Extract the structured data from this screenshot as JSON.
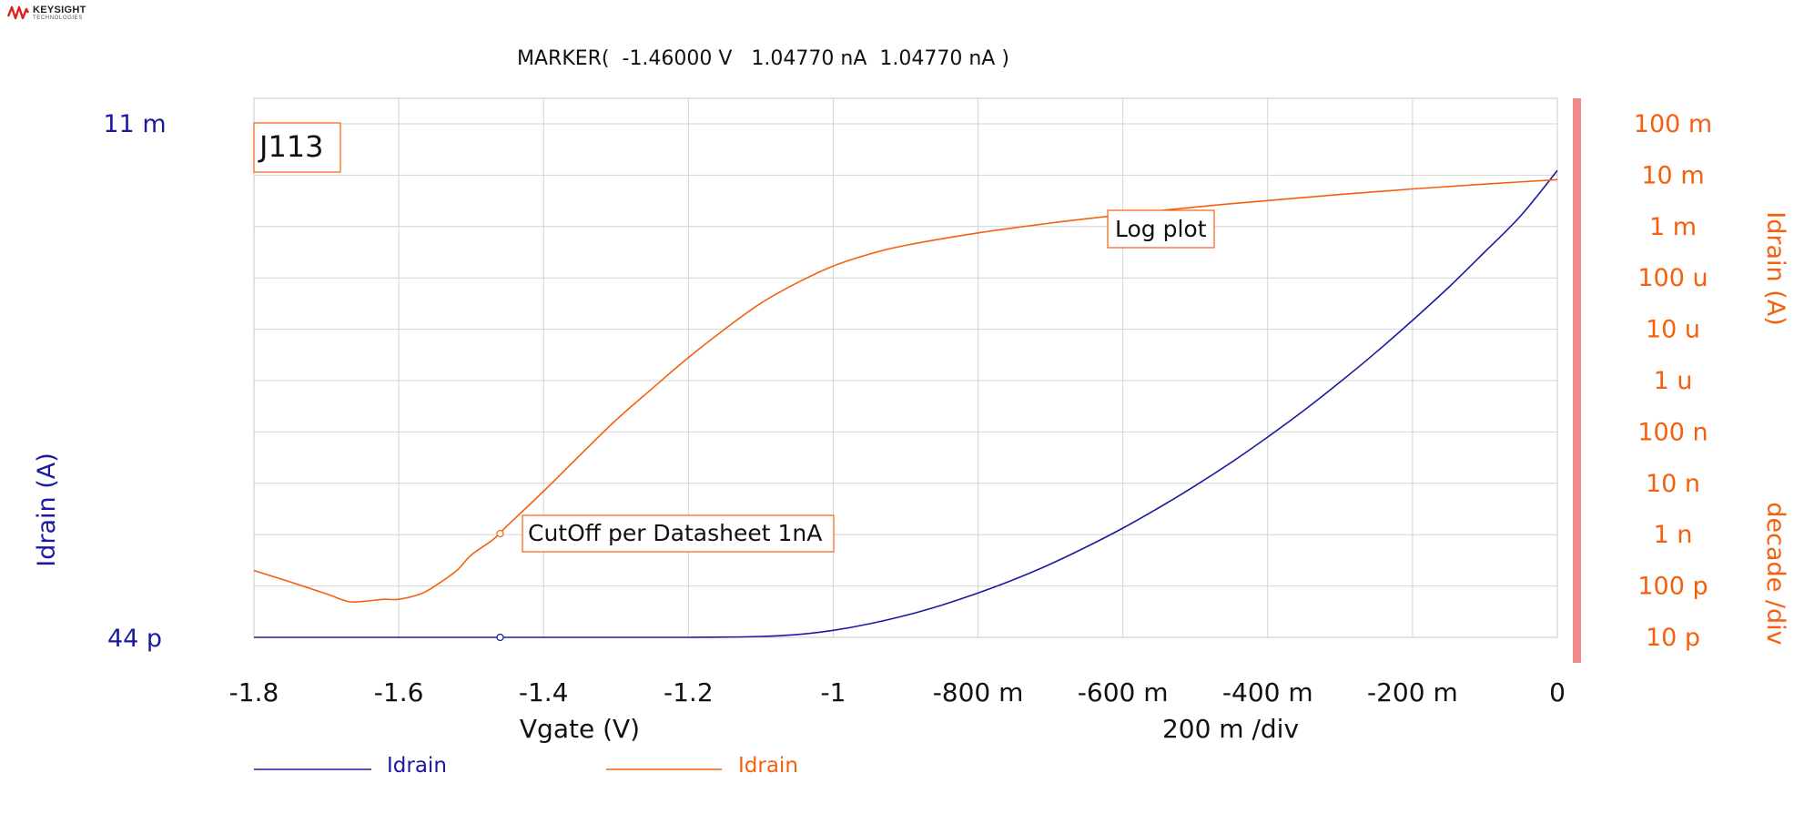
{
  "logo": {
    "name": "KEYSIGHT",
    "sub": "TECHNOLOGIES"
  },
  "marker_readout": "MARKER(  -1.46000 V   1.04770 nA  1.04770 nA )",
  "colors": {
    "blue": "#1a1aa0",
    "orange": "#f5600f",
    "grid": "#d4d4d4",
    "scrollbar": "#ef8a88",
    "annotation_border": "#f5600f"
  },
  "annotations": {
    "device": "J113",
    "log_plot": "Log plot",
    "cutoff": "CutOff per Datasheet 1nA"
  },
  "legend": [
    {
      "label": "Idrain",
      "color": "#1a1aa0"
    },
    {
      "label": "Idrain",
      "color": "#f5600f"
    }
  ],
  "chart_data": {
    "type": "line",
    "x_label": "Vgate (V)",
    "x_div_label": "200 m /div",
    "xlim": [
      -1.8,
      0
    ],
    "x_ticks": [
      -1.8,
      -1.6,
      -1.4,
      -1.2,
      -1.0,
      -0.8,
      -0.6,
      -0.4,
      -0.2,
      0
    ],
    "x_tick_labels": [
      "-1.8",
      "-1.6",
      "-1.4",
      "-1.2",
      "-1",
      "-800 m",
      "-600 m",
      "-400 m",
      "-200 m",
      "0"
    ],
    "y_left": {
      "label": "Idrain (A)",
      "scale": "linear",
      "top_label": "11 m",
      "bottom_label": "44 p",
      "lim": [
        4.4e-11,
        0.011
      ]
    },
    "y_right": {
      "label": "Idrain (A)",
      "div_label": "decade /div",
      "scale": "log",
      "tick_labels": [
        "100 m",
        "10 m",
        "1 m",
        "100 u",
        "10 u",
        "1 u",
        "100 n",
        "10 n",
        "1 n",
        "100 p",
        "10 p"
      ],
      "lim": [
        1e-11,
        0.1
      ]
    },
    "grid": true,
    "marker": {
      "x": -1.46,
      "y": 1.0477e-09
    },
    "series": [
      {
        "name": "Idrain",
        "axis": "left",
        "color": "#1a1aa0",
        "x": [
          -1.8,
          -1.7,
          -1.6,
          -1.5,
          -1.4,
          -1.3,
          -1.2,
          -1.15,
          -1.1,
          -1.05,
          -1.0,
          -0.95,
          -0.9,
          -0.85,
          -0.8,
          -0.75,
          -0.7,
          -0.65,
          -0.6,
          -0.55,
          -0.5,
          -0.45,
          -0.4,
          -0.35,
          -0.3,
          -0.25,
          -0.2,
          -0.15,
          -0.1,
          -0.05,
          0
        ],
        "y": [
          4.4e-11,
          4.4e-11,
          4.4e-11,
          4.4e-11,
          4.4e-11,
          1e-08,
          5e-07,
          5e-06,
          2e-05,
          6e-05,
          0.00015,
          0.00029,
          0.00047,
          0.00069,
          0.00095,
          0.00124,
          0.00157,
          0.00194,
          0.00234,
          0.00278,
          0.00325,
          0.00375,
          0.00429,
          0.00486,
          0.00547,
          0.00611,
          0.00679,
          0.0075,
          0.00826,
          0.00904,
          0.01
        ]
      },
      {
        "name": "Idrain",
        "axis": "right",
        "color": "#f5600f",
        "x": [
          -1.8,
          -1.75,
          -1.7,
          -1.67,
          -1.65,
          -1.62,
          -1.6,
          -1.57,
          -1.55,
          -1.52,
          -1.5,
          -1.47,
          -1.45,
          -1.4,
          -1.35,
          -1.3,
          -1.25,
          -1.2,
          -1.15,
          -1.1,
          -1.05,
          -1.0,
          -0.95,
          -0.9,
          -0.8,
          -0.7,
          -0.6,
          -0.5,
          -0.4,
          -0.3,
          -0.2,
          -0.1,
          0
        ],
        "y": [
          2e-10,
          1.2e-10,
          7e-11,
          5e-11,
          5e-11,
          5.5e-11,
          5.5e-11,
          7e-11,
          1e-10,
          2e-10,
          4e-10,
          8e-10,
          1.5e-09,
          7e-09,
          3.5e-08,
          1.7e-07,
          7e-07,
          2.8e-06,
          1e-05,
          3.2e-05,
          8e-05,
          0.00017,
          0.00029,
          0.00043,
          0.00075,
          0.00117,
          0.0017,
          0.0024,
          0.0032,
          0.0042,
          0.0054,
          0.0067,
          0.0082
        ]
      }
    ]
  }
}
